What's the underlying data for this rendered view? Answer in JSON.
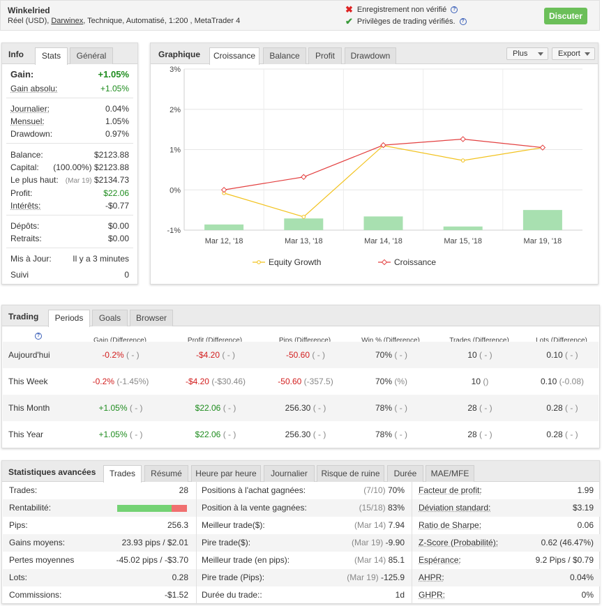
{
  "header": {
    "title": "Winkelried",
    "subtitle_prefix": "Réel (USD), ",
    "broker": "Darwinex",
    "subtitle_suffix": ", Technique, Automatisé, 1:200 , MetaTrader 4",
    "flag1": "Enregistrement non vérifié",
    "flag2": "Privilèges de trading vérifiés.",
    "discuss": "Discuter"
  },
  "info": {
    "head": "Info",
    "tab_stats": "Stats",
    "tab_general": "Général",
    "gain_label": "Gain:",
    "gain_value": "+1.05%",
    "abs_gain_label": "Gain absolu:",
    "abs_gain_value": "+1.05%",
    "daily_label": "Journalier:",
    "daily_value": "0.04%",
    "monthly_label": "Mensuel:",
    "monthly_value": "1.05%",
    "drawdown_label": "Drawdown:",
    "drawdown_value": "0.97%",
    "balance_label": "Balance:",
    "balance_value": "$2123.88",
    "capital_label": "Capital:",
    "capital_pct": "(100.00%)",
    "capital_value": "$2123.88",
    "highest_label": "Le plus haut:",
    "highest_date": "(Mar 19)",
    "highest_value": "$2134.73",
    "profit_label": "Profit:",
    "profit_value": "$22.06",
    "interest_label": "Intérêts:",
    "interest_value": "-$0.77",
    "deposits_label": "Dépôts:",
    "deposits_value": "$0.00",
    "withdrawals_label": "Retraits:",
    "withdrawals_value": "$0.00",
    "updated_label": "Mis à Jour:",
    "updated_value": "Il y a 3 minutes",
    "followers_label": "Suivi",
    "followers_value": "0"
  },
  "chart_panel": {
    "head": "Graphique",
    "tabs": [
      "Croissance",
      "Balance",
      "Profit",
      "Drawdown"
    ],
    "plus": "Plus",
    "export": "Export"
  },
  "chart_data": {
    "type": "line",
    "categories": [
      "Mar 12, '18",
      "Mar 13, '18",
      "Mar 14, '18",
      "Mar 15, '18",
      "Mar 19, '18"
    ],
    "ylim": [
      -1,
      3
    ],
    "yticks": [
      "3%",
      "2%",
      "1%",
      "0%",
      "-1%"
    ],
    "ytick_values": [
      3,
      2,
      1,
      0,
      -1
    ],
    "series": [
      {
        "name": "Equity Growth",
        "color": "#f2c21d",
        "values": [
          -0.08,
          -0.67,
          1.1,
          0.73,
          1.05
        ]
      },
      {
        "name": "Croissance",
        "color": "#e34040",
        "values": [
          0.0,
          0.32,
          1.11,
          1.26,
          1.05
        ]
      }
    ],
    "bars": {
      "color": "#a8e0b0",
      "values": [
        -0.86,
        -0.71,
        -0.66,
        -0.91,
        -0.5
      ]
    },
    "legend_position": "bottom"
  },
  "trading": {
    "head": "Trading",
    "tabs": [
      "Periods",
      "Goals",
      "Browser"
    ],
    "columns": [
      "Gain (Difference)",
      "Profit (Difference)",
      "Pips (Difference)",
      "Win % (Difference)",
      "Trades (Difference)",
      "Lots (Difference)"
    ],
    "rows": [
      {
        "label": "Aujourd'hui",
        "gain": "-0.2%",
        "gain_d": "( - )",
        "profit": "-$4.20",
        "profit_d": "( - )",
        "pips": "-50.60",
        "pips_d": "( - )",
        "win": "70%",
        "win_d": "( - )",
        "trades": "10",
        "trades_d": "( - )",
        "lots": "0.10",
        "lots_d": "( - )",
        "sign": "neg"
      },
      {
        "label": "This Week",
        "gain": "-0.2%",
        "gain_d": "(-1.45%)",
        "profit": "-$4.20",
        "profit_d": "(-$30.46)",
        "pips": "-50.60",
        "pips_d": "(-357.5)",
        "win": "70%",
        "win_d": "(%)",
        "trades": "10",
        "trades_d": "()",
        "lots": "0.10",
        "lots_d": "(-0.08)",
        "sign": "neg"
      },
      {
        "label": "This Month",
        "gain": "+1.05%",
        "gain_d": "( - )",
        "profit": "$22.06",
        "profit_d": "( - )",
        "pips": "256.30",
        "pips_d": "( - )",
        "win": "78%",
        "win_d": "( - )",
        "trades": "28",
        "trades_d": "( - )",
        "lots": "0.28",
        "lots_d": "( - )",
        "sign": "pos"
      },
      {
        "label": "This Year",
        "gain": "+1.05%",
        "gain_d": "( - )",
        "profit": "$22.06",
        "profit_d": "( - )",
        "pips": "256.30",
        "pips_d": "( - )",
        "win": "78%",
        "win_d": "( - )",
        "trades": "28",
        "trades_d": "( - )",
        "lots": "0.28",
        "lots_d": "( - )",
        "sign": "pos"
      }
    ]
  },
  "advanced": {
    "head": "Statistiques avancées",
    "tabs": [
      "Trades",
      "Résumé",
      "Heure par heure",
      "Journalier",
      "Risque de ruine",
      "Durée",
      "MAE/MFE"
    ],
    "col1": [
      {
        "label": "Trades:",
        "value": "28"
      },
      {
        "label": "Rentabilité:",
        "value": "",
        "bar_pct": 78
      },
      {
        "label": "Pips:",
        "value": "256.3"
      },
      {
        "label": "Gains moyens:",
        "value": "23.93 pips / $2.01"
      },
      {
        "label": "Pertes moyennes",
        "value": "-45.02 pips / -$3.70"
      },
      {
        "label": "Lots:",
        "value": "0.28"
      },
      {
        "label": "Commissions:",
        "value": "-$1.52"
      }
    ],
    "col2": [
      {
        "label": "Positions à l'achat gagnées:",
        "extra": "(7/10)",
        "value": "70%"
      },
      {
        "label": "Position à la vente gagnées:",
        "extra": "(15/18)",
        "value": "83%"
      },
      {
        "label": "Meilleur trade($):",
        "extra": "(Mar 14)",
        "value": "7.94"
      },
      {
        "label": "Pire trade($):",
        "extra": "(Mar 19)",
        "value": "-9.90"
      },
      {
        "label": "Meilleur trade (en pips):",
        "extra": "(Mar 14)",
        "value": "85.1"
      },
      {
        "label": "Pire trade (Pips):",
        "extra": "(Mar 19)",
        "value": "-125.9"
      },
      {
        "label": "Durée du trade::",
        "extra": "",
        "value": "1d"
      }
    ],
    "col3": [
      {
        "label": "Facteur de profit:",
        "value": "1.99"
      },
      {
        "label": "Déviation standard:",
        "value": "$3.19"
      },
      {
        "label": "Ratio de Sharpe:",
        "value": "0.06"
      },
      {
        "label": "Z-Score (Probabilité):",
        "value": "0.62 (46.47%)"
      },
      {
        "label": "Espérance:",
        "value": "9.2 Pips / $0.79"
      },
      {
        "label": "AHPR:",
        "value": "0.04%"
      },
      {
        "label": "GHPR:",
        "value": "0%"
      }
    ]
  }
}
